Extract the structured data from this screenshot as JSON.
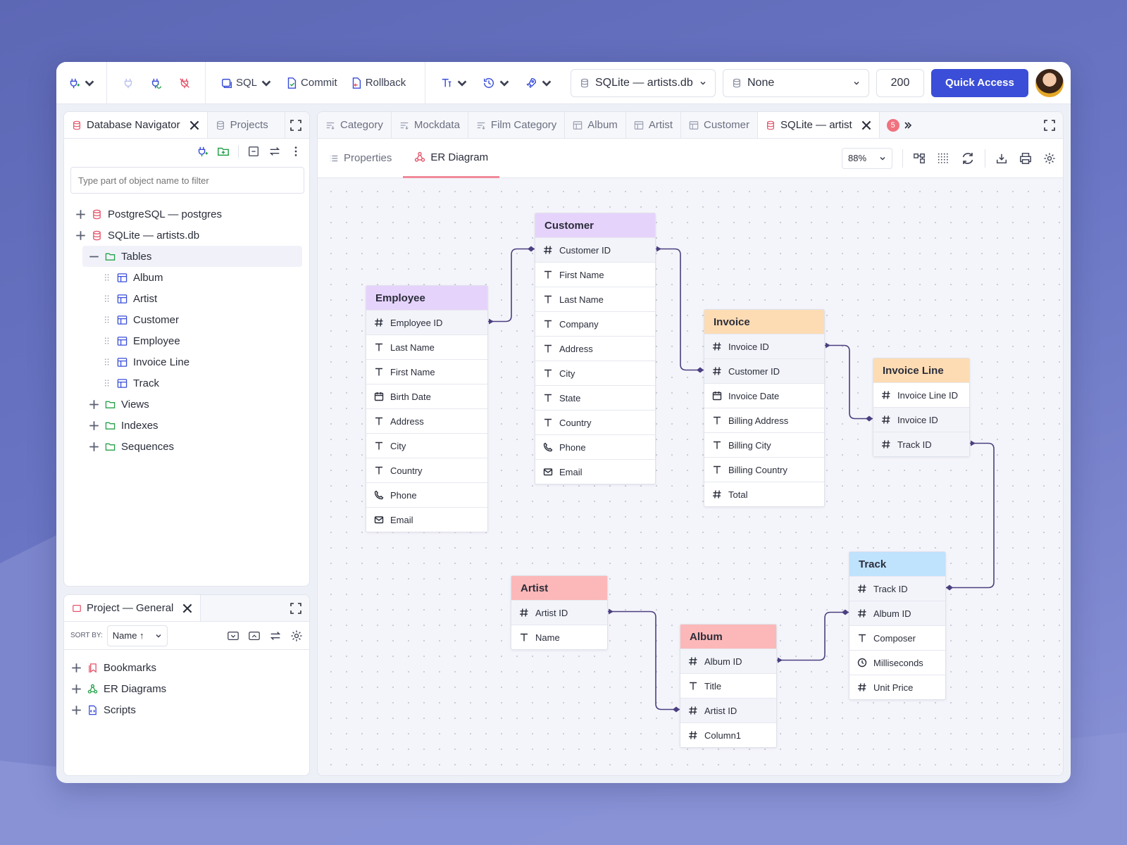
{
  "toolbar": {
    "sql_label": "SQL",
    "commit_label": "Commit",
    "rollback_label": "Rollback",
    "connection_select": "SQLite — artists.db",
    "schema_select": "None",
    "limit_value": "200",
    "quick_access_label": "Quick Access"
  },
  "navigator": {
    "tabs": [
      "Database Navigator",
      "Projects"
    ],
    "filter_placeholder": "Type part of object name to filter",
    "tree": {
      "postgres": "PostgreSQL — postgres",
      "sqlite": "SQLite — artists.db",
      "tables": "Tables",
      "items": [
        "Album",
        "Artist",
        "Customer",
        "Employee",
        "Invoice Line",
        "Track"
      ],
      "views": "Views",
      "indexes": "Indexes",
      "sequences": "Sequences"
    }
  },
  "project": {
    "tab": "Project — General",
    "sort_label": "SORT BY:",
    "sort_value": "Name ↑",
    "items": [
      "Bookmarks",
      "ER Diagrams",
      "Scripts"
    ]
  },
  "editor": {
    "tabs": [
      "Category",
      "Mockdata",
      "Film Category",
      "Album",
      "Artist",
      "Customer",
      "SQLite — artist"
    ],
    "overflow_count": "5",
    "subtabs": [
      "Properties",
      "ER Diagram"
    ],
    "zoom": "88%"
  },
  "colors": {
    "purple": "#e6d3fb",
    "orange": "#fddcb4",
    "red": "#fcb8b8",
    "blue": "#bfe2fd",
    "connector": "#4a3f80",
    "accent": "#3a4ed8"
  },
  "entities": {
    "employee": {
      "title": "Employee",
      "color": "purple",
      "fields": [
        {
          "name": "Employee ID",
          "type": "hash",
          "key": true
        },
        {
          "name": "Last Name",
          "type": "text"
        },
        {
          "name": "First Name",
          "type": "text"
        },
        {
          "name": "Birth Date",
          "type": "calendar"
        },
        {
          "name": "Address",
          "type": "text"
        },
        {
          "name": "City",
          "type": "text"
        },
        {
          "name": "Country",
          "type": "text"
        },
        {
          "name": "Phone",
          "type": "phone"
        },
        {
          "name": "Email",
          "type": "mail"
        }
      ]
    },
    "customer": {
      "title": "Customer",
      "color": "purple",
      "fields": [
        {
          "name": "Customer ID",
          "type": "hash",
          "key": true
        },
        {
          "name": "First Name",
          "type": "text"
        },
        {
          "name": "Last Name",
          "type": "text"
        },
        {
          "name": "Company",
          "type": "text"
        },
        {
          "name": "Address",
          "type": "text"
        },
        {
          "name": "City",
          "type": "text"
        },
        {
          "name": "State",
          "type": "text"
        },
        {
          "name": "Country",
          "type": "text"
        },
        {
          "name": "Phone",
          "type": "phone"
        },
        {
          "name": "Email",
          "type": "mail"
        }
      ]
    },
    "invoice": {
      "title": "Invoice",
      "color": "orange",
      "fields": [
        {
          "name": "Invoice ID",
          "type": "hash",
          "key": true
        },
        {
          "name": "Customer ID",
          "type": "hash",
          "key": true
        },
        {
          "name": "Invoice Date",
          "type": "calendar"
        },
        {
          "name": "Billing Address",
          "type": "text"
        },
        {
          "name": "Billing City",
          "type": "text"
        },
        {
          "name": "Billing Country",
          "type": "text"
        },
        {
          "name": "Total",
          "type": "hash"
        }
      ]
    },
    "invoice_line": {
      "title": "Invoice Line",
      "color": "orange",
      "fields": [
        {
          "name": "Invoice Line ID",
          "type": "hash"
        },
        {
          "name": "Invoice ID",
          "type": "hash",
          "key": true
        },
        {
          "name": "Track ID",
          "type": "hash",
          "key": true
        }
      ]
    },
    "artist": {
      "title": "Artist",
      "color": "red",
      "fields": [
        {
          "name": "Artist ID",
          "type": "hash",
          "key": true
        },
        {
          "name": "Name",
          "type": "text"
        }
      ]
    },
    "album": {
      "title": "Album",
      "color": "red",
      "fields": [
        {
          "name": "Album ID",
          "type": "hash",
          "key": true
        },
        {
          "name": "Title",
          "type": "text"
        },
        {
          "name": "Artist ID",
          "type": "hash",
          "key": true
        },
        {
          "name": "Column1",
          "type": "hash"
        }
      ]
    },
    "track": {
      "title": "Track",
      "color": "blue",
      "fields": [
        {
          "name": "Track ID",
          "type": "hash",
          "key": true
        },
        {
          "name": "Album ID",
          "type": "hash",
          "key": true
        },
        {
          "name": "Composer",
          "type": "text"
        },
        {
          "name": "Milliseconds",
          "type": "clock"
        },
        {
          "name": "Unit Price",
          "type": "hash"
        }
      ]
    }
  }
}
